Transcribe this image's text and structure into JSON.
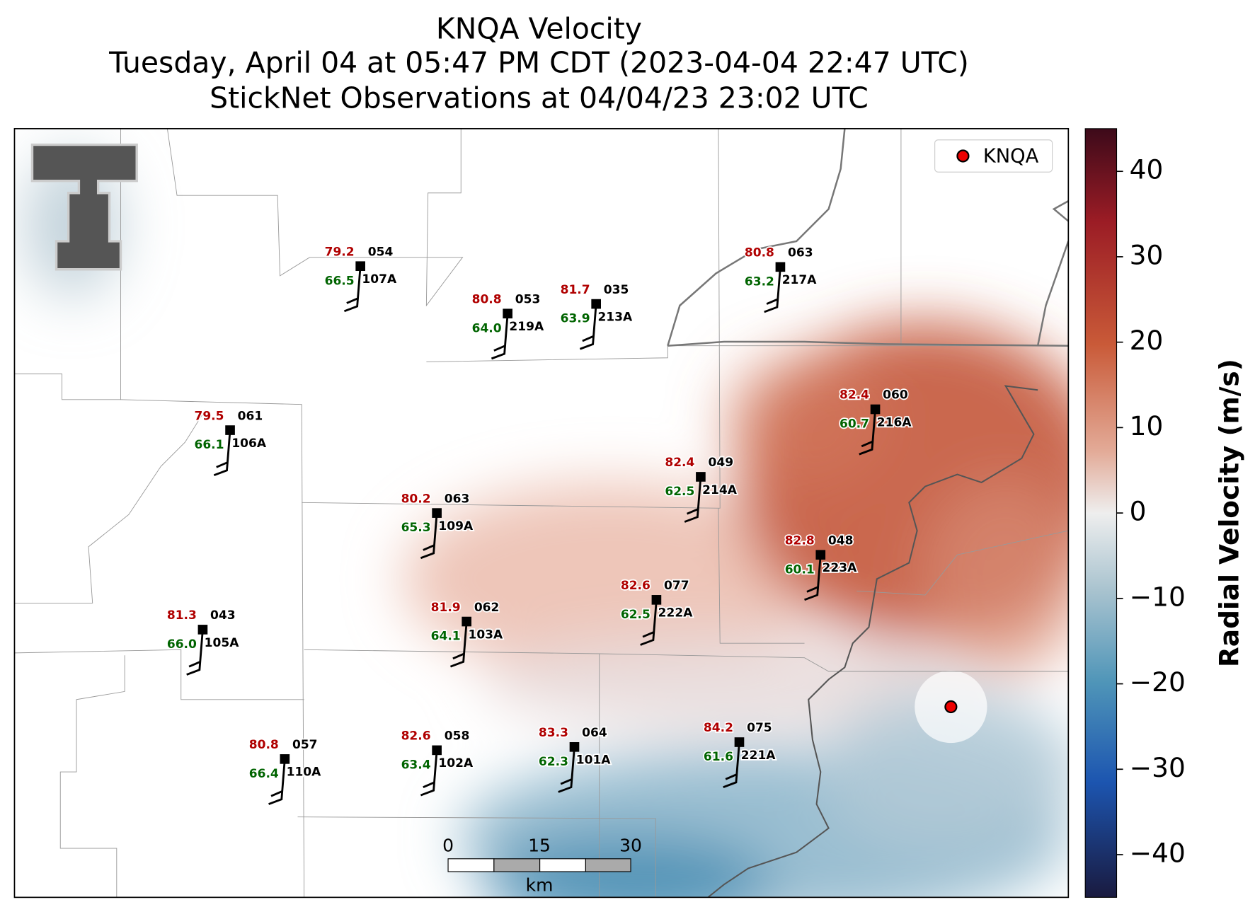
{
  "title": [
    "KNQA Velocity",
    "Tuesday, April 04 at 05:47 PM CDT (2023-04-04 22:47 UTC)",
    "StickNet Observations at 04/04/23 23:02 UTC"
  ],
  "legend": {
    "label": "KNQA"
  },
  "stations": [
    {
      "id": "107A",
      "temperature": "79.2",
      "code": "054",
      "dewpoint": "66.5"
    },
    {
      "id": "219A",
      "temperature": "80.8",
      "code": "053",
      "dewpoint": "64.0"
    },
    {
      "id": "213A",
      "temperature": "81.7",
      "code": "035",
      "dewpoint": "63.9"
    },
    {
      "id": "217A",
      "temperature": "80.8",
      "code": "063",
      "dewpoint": "63.2"
    },
    {
      "id": "106A",
      "temperature": "79.5",
      "code": "061",
      "dewpoint": "66.1"
    },
    {
      "id": "216A",
      "temperature": "82.4",
      "code": "060",
      "dewpoint": "60.7"
    },
    {
      "id": "214A",
      "temperature": "82.4",
      "code": "049",
      "dewpoint": "62.5"
    },
    {
      "id": "109A",
      "temperature": "80.2",
      "code": "063",
      "dewpoint": "65.3"
    },
    {
      "id": "223A",
      "temperature": "82.8",
      "code": "048",
      "dewpoint": "60.1"
    },
    {
      "id": "222A",
      "temperature": "82.6",
      "code": "077",
      "dewpoint": "62.5"
    },
    {
      "id": "105A",
      "temperature": "81.3",
      "code": "043",
      "dewpoint": "66.0"
    },
    {
      "id": "103A",
      "temperature": "81.9",
      "code": "062",
      "dewpoint": "64.1"
    },
    {
      "id": "110A",
      "temperature": "80.8",
      "code": "057",
      "dewpoint": "66.4"
    },
    {
      "id": "102A",
      "temperature": "82.6",
      "code": "058",
      "dewpoint": "63.4"
    },
    {
      "id": "101A",
      "temperature": "83.3",
      "code": "064",
      "dewpoint": "62.3"
    },
    {
      "id": "221A",
      "temperature": "84.2",
      "code": "075",
      "dewpoint": "61.6"
    }
  ],
  "colorbar": {
    "label": "Radial Velocity (m/s)",
    "lim": [
      -45,
      45
    ],
    "ticks": [
      40,
      30,
      20,
      10,
      0,
      {
        "value": -10,
        "label": "−10"
      },
      {
        "value": -20,
        "label": "−20"
      },
      {
        "value": -30,
        "label": "−30"
      },
      {
        "value": -40,
        "label": "−40"
      }
    ]
  },
  "scale_bar": {
    "ticks": [
      0,
      15,
      30
    ],
    "unit": "km"
  }
}
